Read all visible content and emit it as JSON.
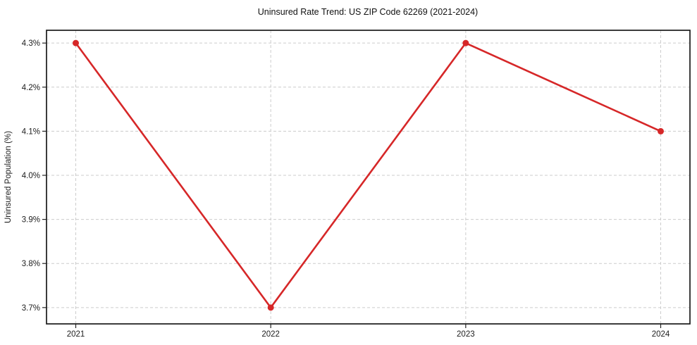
{
  "chart_data": {
    "type": "line",
    "title": "Uninsured Rate Trend: US ZIP Code 62269 (2021-2024)",
    "xlabel": "",
    "ylabel": "Uninsured Population (%)",
    "x": [
      2021,
      2022,
      2023,
      2024
    ],
    "values": [
      4.3,
      3.7,
      4.3,
      4.1
    ],
    "x_tick_labels": [
      "2021",
      "2022",
      "2023",
      "2024"
    ],
    "y_ticks": [
      3.7,
      3.8,
      3.9,
      4.0,
      4.1,
      4.2,
      4.3
    ],
    "y_tick_labels": [
      "3.7%",
      "3.8%",
      "3.9%",
      "4.0%",
      "4.1%",
      "4.2%",
      "4.3%"
    ],
    "xlim": [
      2020.85,
      2024.15
    ],
    "ylim": [
      3.663,
      4.329
    ],
    "grid": "dashed",
    "legend": "none",
    "marker": "circle",
    "colors": {
      "line": "#d62728",
      "marker": "#d62728",
      "grid": "#cccccc",
      "spine": "#1a1a1a",
      "text": "#1c1c1c",
      "background": "#ffffff"
    }
  }
}
